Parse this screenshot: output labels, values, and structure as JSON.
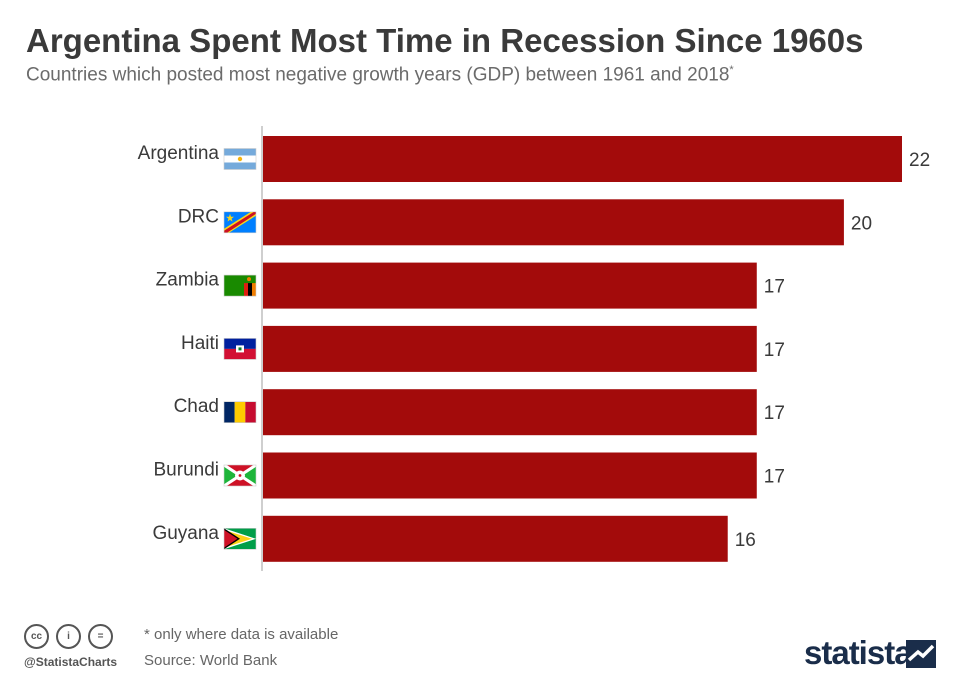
{
  "header": {
    "title": "Argentina Spent Most Time in Recession Since 1960s",
    "subtitle": "Countries which posted most negative growth years (GDP) between 1961 and 2018",
    "subtitle_mark": "*"
  },
  "chart_data": {
    "type": "bar",
    "orientation": "horizontal",
    "categories": [
      "Argentina",
      "DRC",
      "Zambia",
      "Haiti",
      "Chad",
      "Burundi",
      "Guyana"
    ],
    "values": [
      22,
      20,
      17,
      17,
      17,
      17,
      16
    ],
    "xlim": [
      0,
      22
    ],
    "grid": false,
    "bar_color": "#a30b0b",
    "flags": [
      "argentina-flag-icon",
      "drc-flag-icon",
      "zambia-flag-icon",
      "haiti-flag-icon",
      "chad-flag-icon",
      "burundi-flag-icon",
      "guyana-flag-icon"
    ]
  },
  "footer": {
    "note": "* only where data is available",
    "source": "Source: World Bank",
    "handle": "@StatistaCharts",
    "brand": "statista",
    "cc_icons": [
      "cc-icon",
      "by-icon",
      "nd-icon"
    ],
    "cc_glyphs": [
      "cc",
      "i",
      "="
    ]
  }
}
